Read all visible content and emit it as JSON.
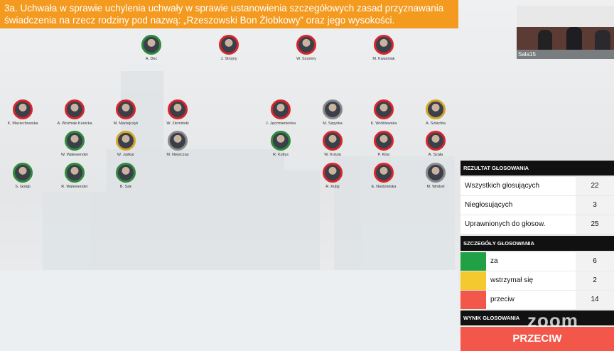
{
  "title": {
    "line1": "3a. Uchwała w sprawie uchylenia uchwały w sprawie ustanowienia szczegółowych zasad przyznawania",
    "line2": "świadczenia na rzecz rodziny pod nazwą: „Rzeszowski Bon Żłobkowy” oraz jego wysokości."
  },
  "video": {
    "label": "Sala15"
  },
  "councilors": [
    {
      "name": "A. Dec",
      "color": "#2e8b3a"
    },
    {
      "name": "J. Strojny",
      "color": "#d7262b"
    },
    {
      "name": "W. Szumny",
      "color": "#d7262b"
    },
    {
      "name": "M. Kwaśniak",
      "color": "#d7262b"
    },
    {
      "name": "K. Maciechowska",
      "color": "#d7262b"
    },
    {
      "name": "A. Woźniak-Kunicka",
      "color": "#d7262b"
    },
    {
      "name": "M. Maciejczyk",
      "color": "#d7262b"
    },
    {
      "name": "W. Ziemiński",
      "color": "#d7262b"
    },
    {
      "name": "J. Jęczmienionka",
      "color": "#d7262b"
    },
    {
      "name": "M. Szpyrka",
      "color": "#8a8a8a"
    },
    {
      "name": "K. Wróblewska",
      "color": "#d7262b"
    },
    {
      "name": "A. Szlachta",
      "color": "#d4a52a"
    },
    {
      "name": "W. Walewender",
      "color": "#2e8b3a"
    },
    {
      "name": "W. Jaśkar",
      "color": "#d4a52a"
    },
    {
      "name": "M. Niewczas",
      "color": "#8a8a8a"
    },
    {
      "name": "R. Kultys",
      "color": "#2e8b3a"
    },
    {
      "name": "W. Kotula",
      "color": "#d7262b"
    },
    {
      "name": "P. Kilar",
      "color": "#d7262b"
    },
    {
      "name": "A. Szała",
      "color": "#d7262b"
    },
    {
      "name": "S. Gołąb",
      "color": "#2e8b3a"
    },
    {
      "name": "R. Walewender",
      "color": "#2e8b3a"
    },
    {
      "name": "B. Sak",
      "color": "#2e8b3a"
    },
    {
      "name": "R. Kulig",
      "color": "#d7262b"
    },
    {
      "name": "E. Niedzielska",
      "color": "#d7262b"
    },
    {
      "name": "M. Wróbel",
      "color": "#8a8a8a"
    }
  ],
  "results": {
    "header": "REZULTAT GŁOSOWANIA",
    "rows": [
      {
        "label": "Wszystkich głosujących",
        "value": 22
      },
      {
        "label": "Niegłosujących",
        "value": 3
      },
      {
        "label": "Uprawnionych do głosow.",
        "value": 25
      }
    ]
  },
  "details": {
    "header": "SZCZEGÓŁY GŁOSOWANIA",
    "rows": [
      {
        "label": "za",
        "value": 6,
        "color": "#22a045"
      },
      {
        "label": "wstrzymał się",
        "value": 2,
        "color": "#f4c930"
      },
      {
        "label": "przeciw",
        "value": 14,
        "color": "#f2574a"
      }
    ]
  },
  "outcome": {
    "header": "WYNIK GŁOSOWANIA",
    "value": "PRZECIW",
    "color": "#f2574a"
  },
  "watermark": "zoom"
}
